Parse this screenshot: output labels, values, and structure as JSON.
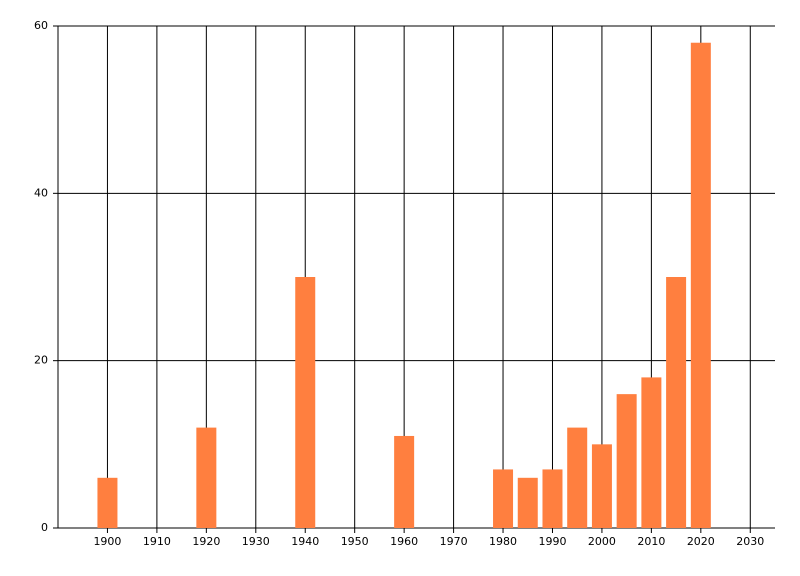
{
  "chart_data": {
    "type": "bar",
    "x": [
      1900,
      1920,
      1940,
      1960,
      1980,
      1985,
      1990,
      1995,
      2000,
      2005,
      2010,
      2015,
      2020
    ],
    "values": [
      6,
      12,
      30,
      11,
      7,
      6,
      7,
      12,
      10,
      16,
      18,
      30,
      58
    ],
    "color": "#ff7f3f",
    "xlim": [
      1890,
      2035
    ],
    "xticks": [
      1900,
      1910,
      1920,
      1930,
      1940,
      1950,
      1960,
      1970,
      1980,
      1990,
      2000,
      2010,
      2020,
      2030
    ],
    "ylim": [
      0,
      60
    ],
    "yticks": [
      0,
      20,
      40,
      60
    ],
    "grid": true
  }
}
